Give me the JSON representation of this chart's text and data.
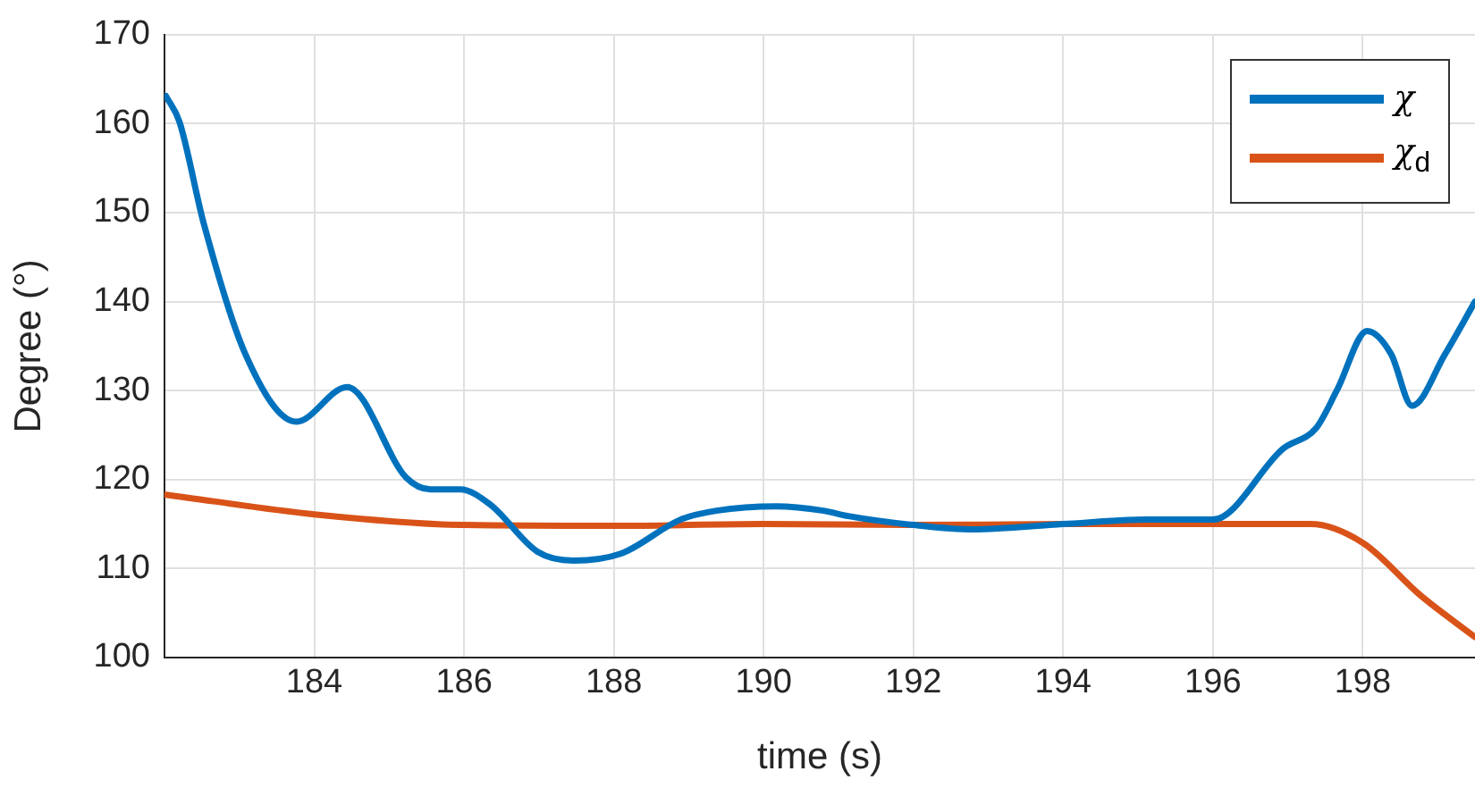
{
  "chart_data": {
    "type": "line",
    "xlabel": "time (s)",
    "ylabel": "Degree (°)",
    "xlim": [
      182,
      199.5
    ],
    "xticks": [
      184,
      186,
      188,
      190,
      192,
      194,
      196,
      198
    ],
    "ylim": [
      100,
      170
    ],
    "yticks": [
      100,
      110,
      120,
      130,
      140,
      150,
      160,
      170
    ],
    "grid": true,
    "legend": "top right",
    "marker": "none",
    "line_style": "solid",
    "series": [
      {
        "name": "χ",
        "color": "#0072bd",
        "x": [
          182.02,
          182.2,
          182.53,
          183.08,
          183.76,
          184.44,
          185.23,
          185.55,
          185.95,
          186.35,
          186.98,
          187.46,
          188.1,
          188.89,
          189.37,
          190.17,
          190.8,
          191.13,
          192.0,
          192.8,
          194.0,
          195.1,
          196.0,
          196.94,
          197.38,
          197.66,
          198.06,
          198.38,
          198.66,
          199.1,
          199.5
        ],
        "values": [
          163.1,
          160.2,
          148.6,
          134.1,
          126.5,
          130.4,
          120.2,
          118.9,
          118.9,
          117.2,
          111.9,
          110.9,
          111.7,
          115.5,
          116.5,
          117.0,
          116.5,
          115.9,
          114.9,
          114.4,
          115.0,
          115.5,
          115.5,
          123.5,
          125.8,
          130.1,
          136.7,
          134.1,
          128.3,
          134.1,
          140.0
        ]
      },
      {
        "name": "χ$_{d}$",
        "color": "#d95319",
        "x": [
          182.02,
          184,
          186,
          188,
          190,
          192,
          194,
          196,
          197.3,
          198,
          198.77,
          199.5
        ],
        "values": [
          118.3,
          116.1,
          114.9,
          114.8,
          115.0,
          114.9,
          115.0,
          115.0,
          115.0,
          112.9,
          107.0,
          102.3
        ]
      }
    ]
  }
}
